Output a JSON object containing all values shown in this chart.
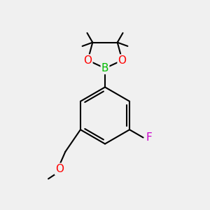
{
  "bg_color": "#f0f0f0",
  "bond_color": "#000000",
  "bond_width": 1.5,
  "atom_colors": {
    "B": "#00bb00",
    "O": "#ff0000",
    "F": "#cc00cc",
    "C": "#000000"
  },
  "font_size": 11,
  "fig_size": [
    3.0,
    3.0
  ],
  "dpi": 100
}
